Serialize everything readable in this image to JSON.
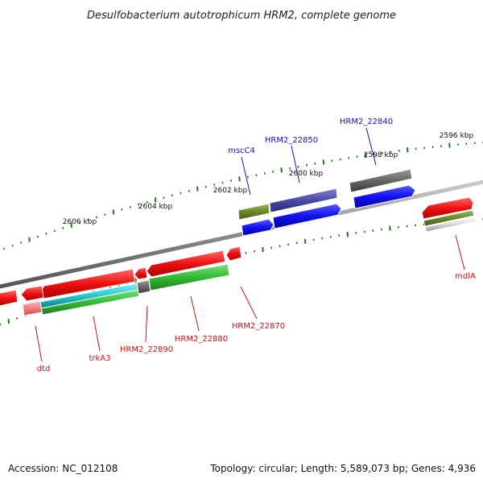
{
  "title": "Desulfobacterium autotrophicum HRM2, complete genome",
  "footer": {
    "accession": "Accession: NC_012108",
    "summary": "Topology: circular; Length: 5,589,073 bp; Genes: 4,936"
  },
  "ticks": [
    "2596 kbp",
    "2598 kbp",
    "2600 kbp",
    "2602 kbp",
    "2604 kbp",
    "2606 kbp"
  ],
  "labels_top": [
    "mscC4",
    "HRM2_22850",
    "HRM2_22840"
  ],
  "labels_bottom": [
    "mdlA",
    "HRM2_22870",
    "HRM2_22880",
    "HRM2_22890",
    "trkA3",
    "dtd"
  ],
  "colors": {
    "backbone": "#8a8a8a",
    "tick": "#1a7a1a",
    "gene_red": "#ee1111",
    "gene_green": "#33bb33",
    "gene_blue": "#1111ee",
    "gene_navy": "#4a4aa8",
    "gene_olive": "#6a8a2a",
    "gene_gray": "#666666",
    "gene_cyan": "#22c8d0",
    "gene_pink": "#f08080",
    "label_blue": "#1111cc",
    "label_red": "#cc1111"
  }
}
